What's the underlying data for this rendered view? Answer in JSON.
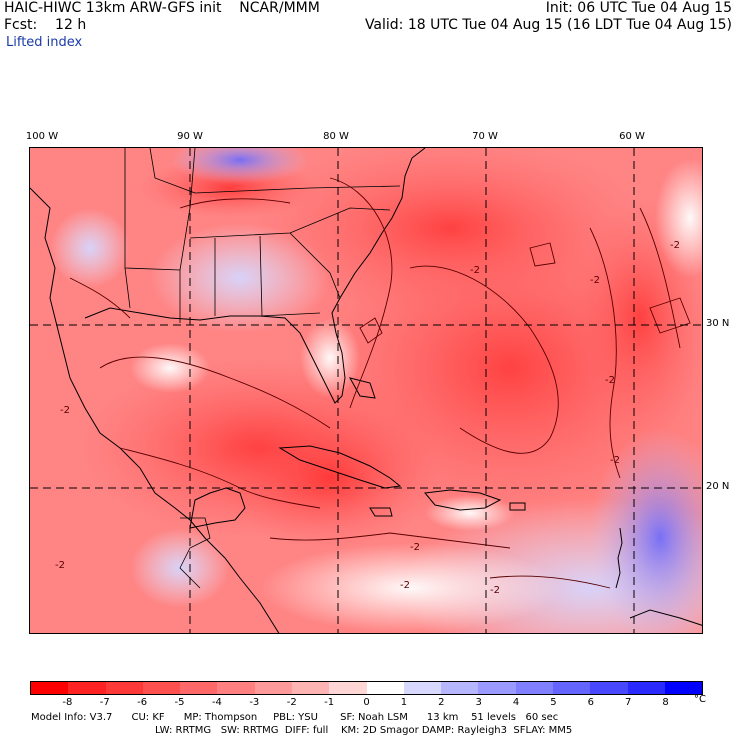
{
  "header": {
    "title": "HAIC-HIWC 13km ARW-GFS init    NCAR/MMM",
    "fcst": "Fcst:    12 h",
    "field": "Lifted index",
    "init": "Init: 06 UTC Tue 04 Aug 15",
    "valid": "Valid: 18 UTC Tue 04 Aug 15 (16 LDT Tue 04 Aug 15)"
  },
  "map": {
    "lon_labels": [
      "100 W",
      "90 W",
      "80 W",
      "70 W",
      "60 W"
    ],
    "lat_labels": [
      "30 N",
      "20 N"
    ],
    "contour_label": "-2",
    "extent": {
      "lon_min": -100,
      "lon_max": -56,
      "lat_min": 13,
      "lat_max": 37
    },
    "colors": {
      "land_border": "#000000",
      "grid_line": "#000000",
      "contour": "#5a0000"
    }
  },
  "colorbar": {
    "ticks": [
      "-8",
      "-7",
      "-6",
      "-5",
      "-4",
      "-3",
      "-2",
      "-1",
      "0",
      "1",
      "2",
      "3",
      "4",
      "5",
      "6",
      "7",
      "8"
    ],
    "unit": "°C",
    "colors": [
      "#ff0000",
      "#ff2222",
      "#ff3838",
      "#ff5050",
      "#ff6868",
      "#ff8080",
      "#ff9a9a",
      "#ffb4b4",
      "#ffd6d6",
      "#ffffff",
      "#d8d8ff",
      "#b6b6ff",
      "#9a9aff",
      "#8080ff",
      "#6464ff",
      "#4848ff",
      "#2a2aff",
      "#0000ff"
    ]
  },
  "footer": {
    "line1": "Model Info: V3.7      CU: KF      MP: Thompson     PBL: YSU       SF: Noah LSM      13 km    51 levels   60 sec",
    "line2": "LW: RRTMG   SW: RRTMG  DIFF: full    KM: 2D Smagor DAMP: Rayleigh3  SFLAY: MM5"
  }
}
